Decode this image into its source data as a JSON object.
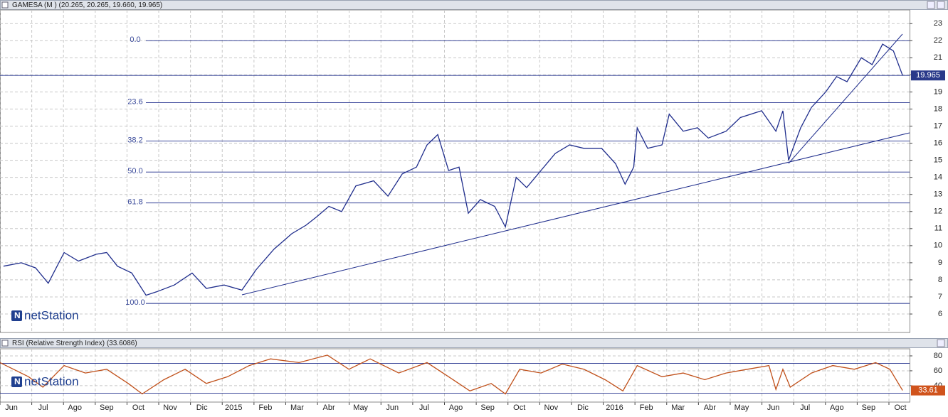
{
  "chart_data": [
    {
      "type": "line",
      "title": "GAMESA (M ) (20.265, 20.265, 19.660, 19.965)",
      "watermark": "netStation",
      "color": "#1f2d8c",
      "x": [
        0.11,
        0.67,
        1.12,
        1.52,
        2.02,
        2.47,
        3.03,
        3.36,
        3.7,
        4.15,
        4.6,
        4.93,
        5.49,
        6.05,
        6.5,
        7.06,
        7.62,
        8.07,
        8.63,
        9.19,
        9.64,
        9.98,
        10.36,
        10.76,
        11.21,
        11.77,
        12.22,
        12.67,
        13.12,
        13.45,
        13.79,
        14.13,
        14.46,
        14.75,
        15.13,
        15.58,
        15.92,
        16.26,
        16.59,
        17.04,
        17.49,
        17.94,
        18.39,
        18.95,
        19.39,
        19.69,
        19.96,
        20.07,
        20.4,
        20.85,
        21.08,
        21.52,
        21.97,
        22.31,
        22.87,
        23.32,
        23.99,
        24.44,
        24.66,
        24.84,
        25.22,
        25.56,
        26.01,
        26.35,
        26.68,
        27.13,
        27.47,
        27.8,
        28.14,
        28.43
      ],
      "values": [
        8.8,
        9.0,
        8.7,
        7.8,
        9.6,
        9.1,
        9.5,
        9.6,
        8.8,
        8.4,
        7.1,
        7.3,
        7.7,
        8.4,
        7.5,
        7.7,
        7.4,
        8.6,
        9.8,
        10.7,
        11.2,
        11.7,
        12.3,
        12.0,
        13.5,
        13.8,
        12.9,
        14.2,
        14.6,
        15.9,
        16.5,
        14.4,
        14.6,
        11.9,
        12.7,
        12.3,
        11.1,
        14.0,
        13.4,
        14.4,
        15.4,
        15.9,
        15.7,
        15.7,
        14.8,
        13.6,
        14.6,
        16.9,
        15.7,
        15.9,
        17.7,
        16.7,
        16.9,
        16.3,
        16.7,
        17.5,
        17.9,
        16.7,
        17.9,
        15.0,
        16.9,
        18.1,
        19.0,
        19.9,
        19.6,
        21.0,
        20.6,
        21.8,
        21.4,
        19.965
      ],
      "xlim": [
        0,
        28.65
      ],
      "ylim": [
        4.92,
        23.8
      ],
      "yticks": [
        6,
        7,
        8,
        9,
        10,
        11,
        12,
        13,
        14,
        15,
        16,
        17,
        18,
        19,
        20,
        21,
        22,
        23
      ],
      "xticks": [
        {
          "value": 0,
          "label": "Jun"
        },
        {
          "value": 1,
          "label": "Jul"
        },
        {
          "value": 2,
          "label": "Ago"
        },
        {
          "value": 3,
          "label": "Sep"
        },
        {
          "value": 4,
          "label": "Oct"
        },
        {
          "value": 5,
          "label": "Nov"
        },
        {
          "value": 6,
          "label": "Dic"
        },
        {
          "value": 7,
          "label": "2015"
        },
        {
          "value": 8,
          "label": "Feb"
        },
        {
          "value": 9,
          "label": "Mar"
        },
        {
          "value": 10,
          "label": "Abr"
        },
        {
          "value": 11,
          "label": "May"
        },
        {
          "value": 12,
          "label": "Jun"
        },
        {
          "value": 13,
          "label": "Jul"
        },
        {
          "value": 14,
          "label": "Ago"
        },
        {
          "value": 15,
          "label": "Sep"
        },
        {
          "value": 16,
          "label": "Oct"
        },
        {
          "value": 17,
          "label": "Nov"
        },
        {
          "value": 18,
          "label": "Dic"
        },
        {
          "value": 19,
          "label": "2016"
        },
        {
          "value": 20,
          "label": "Feb"
        },
        {
          "value": 21,
          "label": "Mar"
        },
        {
          "value": 22,
          "label": "Abr"
        },
        {
          "value": 23,
          "label": "May"
        },
        {
          "value": 24,
          "label": "Jun"
        },
        {
          "value": 25,
          "label": "Jul"
        },
        {
          "value": 26,
          "label": "Ago"
        },
        {
          "value": 27,
          "label": "Sep"
        },
        {
          "value": 28,
          "label": "Oct"
        }
      ],
      "fib_levels": [
        {
          "value": 22.0,
          "label": "0.0"
        },
        {
          "value": 18.37,
          "label": "23.6"
        },
        {
          "value": 16.13,
          "label": "38.2"
        },
        {
          "value": 14.31,
          "label": "50.0"
        },
        {
          "value": 12.5,
          "label": "61.8"
        },
        {
          "value": 6.62,
          "label": "100.0"
        }
      ],
      "last_value": 19.965,
      "grid": true
    },
    {
      "type": "line",
      "title": "RSI (Relative Strength Index) (33.6086)",
      "watermark": "netStation",
      "color": "#c0501a",
      "x": [
        0,
        0.9,
        1.35,
        2.02,
        2.69,
        3.36,
        4.04,
        4.48,
        5.16,
        5.83,
        6.5,
        7.17,
        7.85,
        8.52,
        9.42,
        10.31,
        10.99,
        11.66,
        12.56,
        13.45,
        14.13,
        14.8,
        15.47,
        15.92,
        16.37,
        17.04,
        17.71,
        18.39,
        19.06,
        19.62,
        20.07,
        20.85,
        21.52,
        22.2,
        22.87,
        23.54,
        24.22,
        24.44,
        24.66,
        24.89,
        25.56,
        26.23,
        26.91,
        27.58,
        28.03,
        28.43
      ],
      "values": [
        71,
        52,
        38,
        67,
        57,
        62,
        43,
        29,
        48,
        62,
        43,
        52,
        67,
        76,
        71,
        81,
        62,
        76,
        57,
        71,
        52,
        33,
        43,
        29,
        62,
        57,
        69,
        62,
        48,
        33,
        67,
        52,
        57,
        48,
        57,
        62,
        67,
        35,
        62,
        38,
        57,
        67,
        62,
        71,
        62,
        33.61
      ],
      "xlim": [
        0,
        28.65
      ],
      "ylim": [
        18,
        89.5
      ],
      "yticks": [
        40,
        60,
        80
      ],
      "levels": [
        30,
        70
      ],
      "last_value": 33.61,
      "grid": true
    }
  ]
}
